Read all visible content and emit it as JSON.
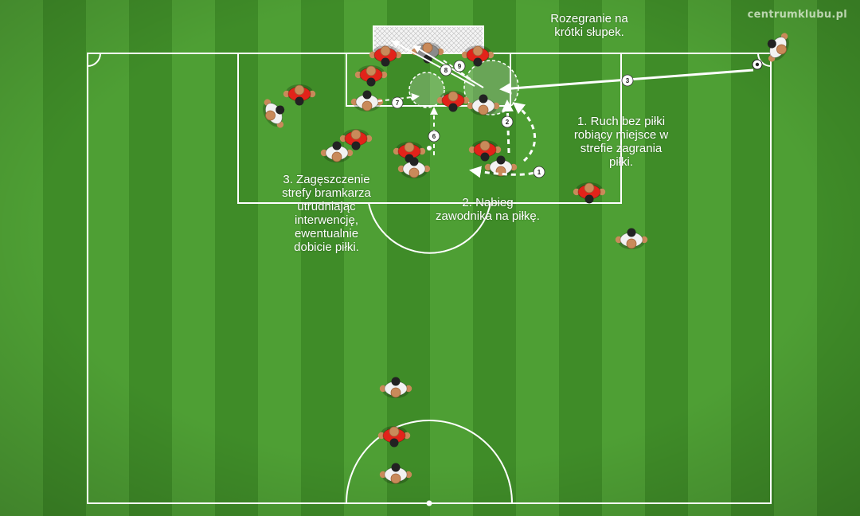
{
  "watermark": "centrumklubu.pl",
  "annotations": {
    "short_post": "Rozegranie na\nkrótki słupek.",
    "run_without_ball": "1. Ruch bez piłki\nrobiący miejsce w\nstrefie zagrania\npiłki.",
    "run_onto_ball": "2. Nabieg\nzawodnika na piłkę.",
    "crowding": "3. Zagęszczenie\nstrefy bramkarza\nutrudniając\ninterwencję,\newentualnie\ndobicie piłki."
  },
  "steps": [
    "1",
    "2",
    "3",
    "6",
    "7",
    "8",
    "9"
  ],
  "colors": {
    "grass_light": "#4e9f34",
    "grass_dark": "#3f8c28",
    "red_team": "#e2231a",
    "white_team": "#f2f2f2",
    "keeper": "#8a8a8a",
    "lines": "#ffffff"
  },
  "icons": {
    "player": "player-top-view-icon",
    "ball": "soccer-ball-icon"
  }
}
